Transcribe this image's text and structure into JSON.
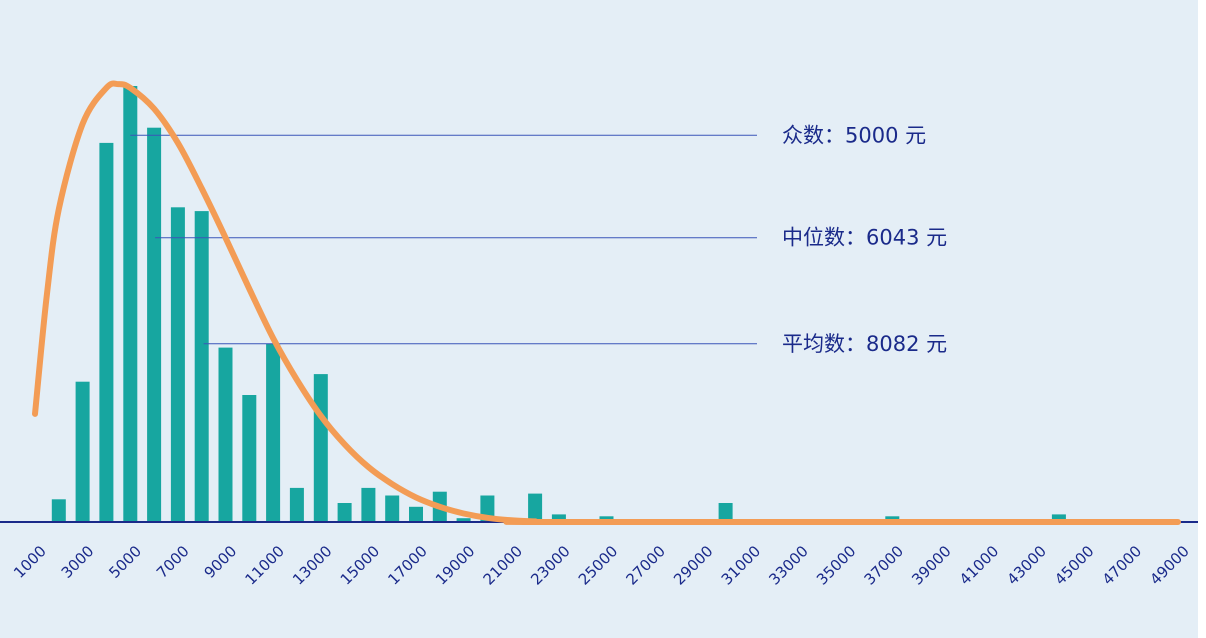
{
  "chart_data": {
    "type": "bar",
    "title": "",
    "xlabel": "",
    "ylabel": "",
    "grid": false,
    "legend": "none",
    "x_tick_labels": [
      "1000",
      "3000",
      "5000",
      "7000",
      "9000",
      "11000",
      "13000",
      "15000",
      "17000",
      "19000",
      "21000",
      "23000",
      "25000",
      "27000",
      "29000",
      "31000",
      "33000",
      "35000",
      "37000",
      "39000",
      "41000",
      "43000",
      "45000",
      "47000",
      "49000"
    ],
    "x_range": [
      1000,
      49000
    ],
    "y_range": [
      0,
      23
    ],
    "bars": [
      {
        "x": 2000,
        "value": 1.2
      },
      {
        "x": 3000,
        "value": 7.4
      },
      {
        "x": 4000,
        "value": 20.0
      },
      {
        "x": 5000,
        "value": 23.0
      },
      {
        "x": 6000,
        "value": 20.8
      },
      {
        "x": 7000,
        "value": 16.6
      },
      {
        "x": 8000,
        "value": 16.4
      },
      {
        "x": 9000,
        "value": 9.2
      },
      {
        "x": 10000,
        "value": 6.7
      },
      {
        "x": 11000,
        "value": 9.4
      },
      {
        "x": 12000,
        "value": 1.8
      },
      {
        "x": 13000,
        "value": 7.8
      },
      {
        "x": 14000,
        "value": 1.0
      },
      {
        "x": 15000,
        "value": 1.8
      },
      {
        "x": 16000,
        "value": 1.4
      },
      {
        "x": 17000,
        "value": 0.8
      },
      {
        "x": 18000,
        "value": 1.6
      },
      {
        "x": 19000,
        "value": 0.2
      },
      {
        "x": 20000,
        "value": 1.4
      },
      {
        "x": 21000,
        "value": 0.2
      },
      {
        "x": 22000,
        "value": 1.5
      },
      {
        "x": 23000,
        "value": 0.4
      },
      {
        "x": 24000,
        "value": 0.1
      },
      {
        "x": 25000,
        "value": 0.3
      },
      {
        "x": 26000,
        "value": 0.1
      },
      {
        "x": 30000,
        "value": 1.0
      },
      {
        "x": 37000,
        "value": 0.3
      },
      {
        "x": 44000,
        "value": 0.4
      }
    ],
    "curve": [
      [
        1000,
        5.7
      ],
      [
        1500,
        12.0
      ],
      [
        2000,
        16.5
      ],
      [
        3000,
        21.0
      ],
      [
        4000,
        22.9
      ],
      [
        4500,
        23.1
      ],
      [
        5000,
        22.9
      ],
      [
        6000,
        21.8
      ],
      [
        7000,
        20.0
      ],
      [
        8000,
        17.6
      ],
      [
        9000,
        15.0
      ],
      [
        10000,
        12.3
      ],
      [
        11000,
        9.7
      ],
      [
        12000,
        7.5
      ],
      [
        13000,
        5.6
      ],
      [
        14000,
        4.1
      ],
      [
        15000,
        2.9
      ],
      [
        16000,
        2.0
      ],
      [
        17000,
        1.3
      ],
      [
        18000,
        0.8
      ],
      [
        19000,
        0.45
      ],
      [
        20000,
        0.22
      ],
      [
        21000,
        0.09
      ],
      [
        22000,
        0.03
      ],
      [
        23000,
        0.0
      ],
      [
        49000,
        0.0
      ]
    ],
    "annotations": [
      {
        "label": "众数：5000 元",
        "x": 5000,
        "y": 20.4
      },
      {
        "label": "中位数：6043 元",
        "x": 6043,
        "y": 15.0
      },
      {
        "label": "平均数：8082 元",
        "x": 8082,
        "y": 9.4
      }
    ]
  },
  "colors": {
    "background": "#e4eef6",
    "bar": "#17a6a0",
    "curve": "#f39c55",
    "guide_line": "#3a55b8",
    "axis": "#1a2a8a",
    "text": "#1a2a8a"
  }
}
